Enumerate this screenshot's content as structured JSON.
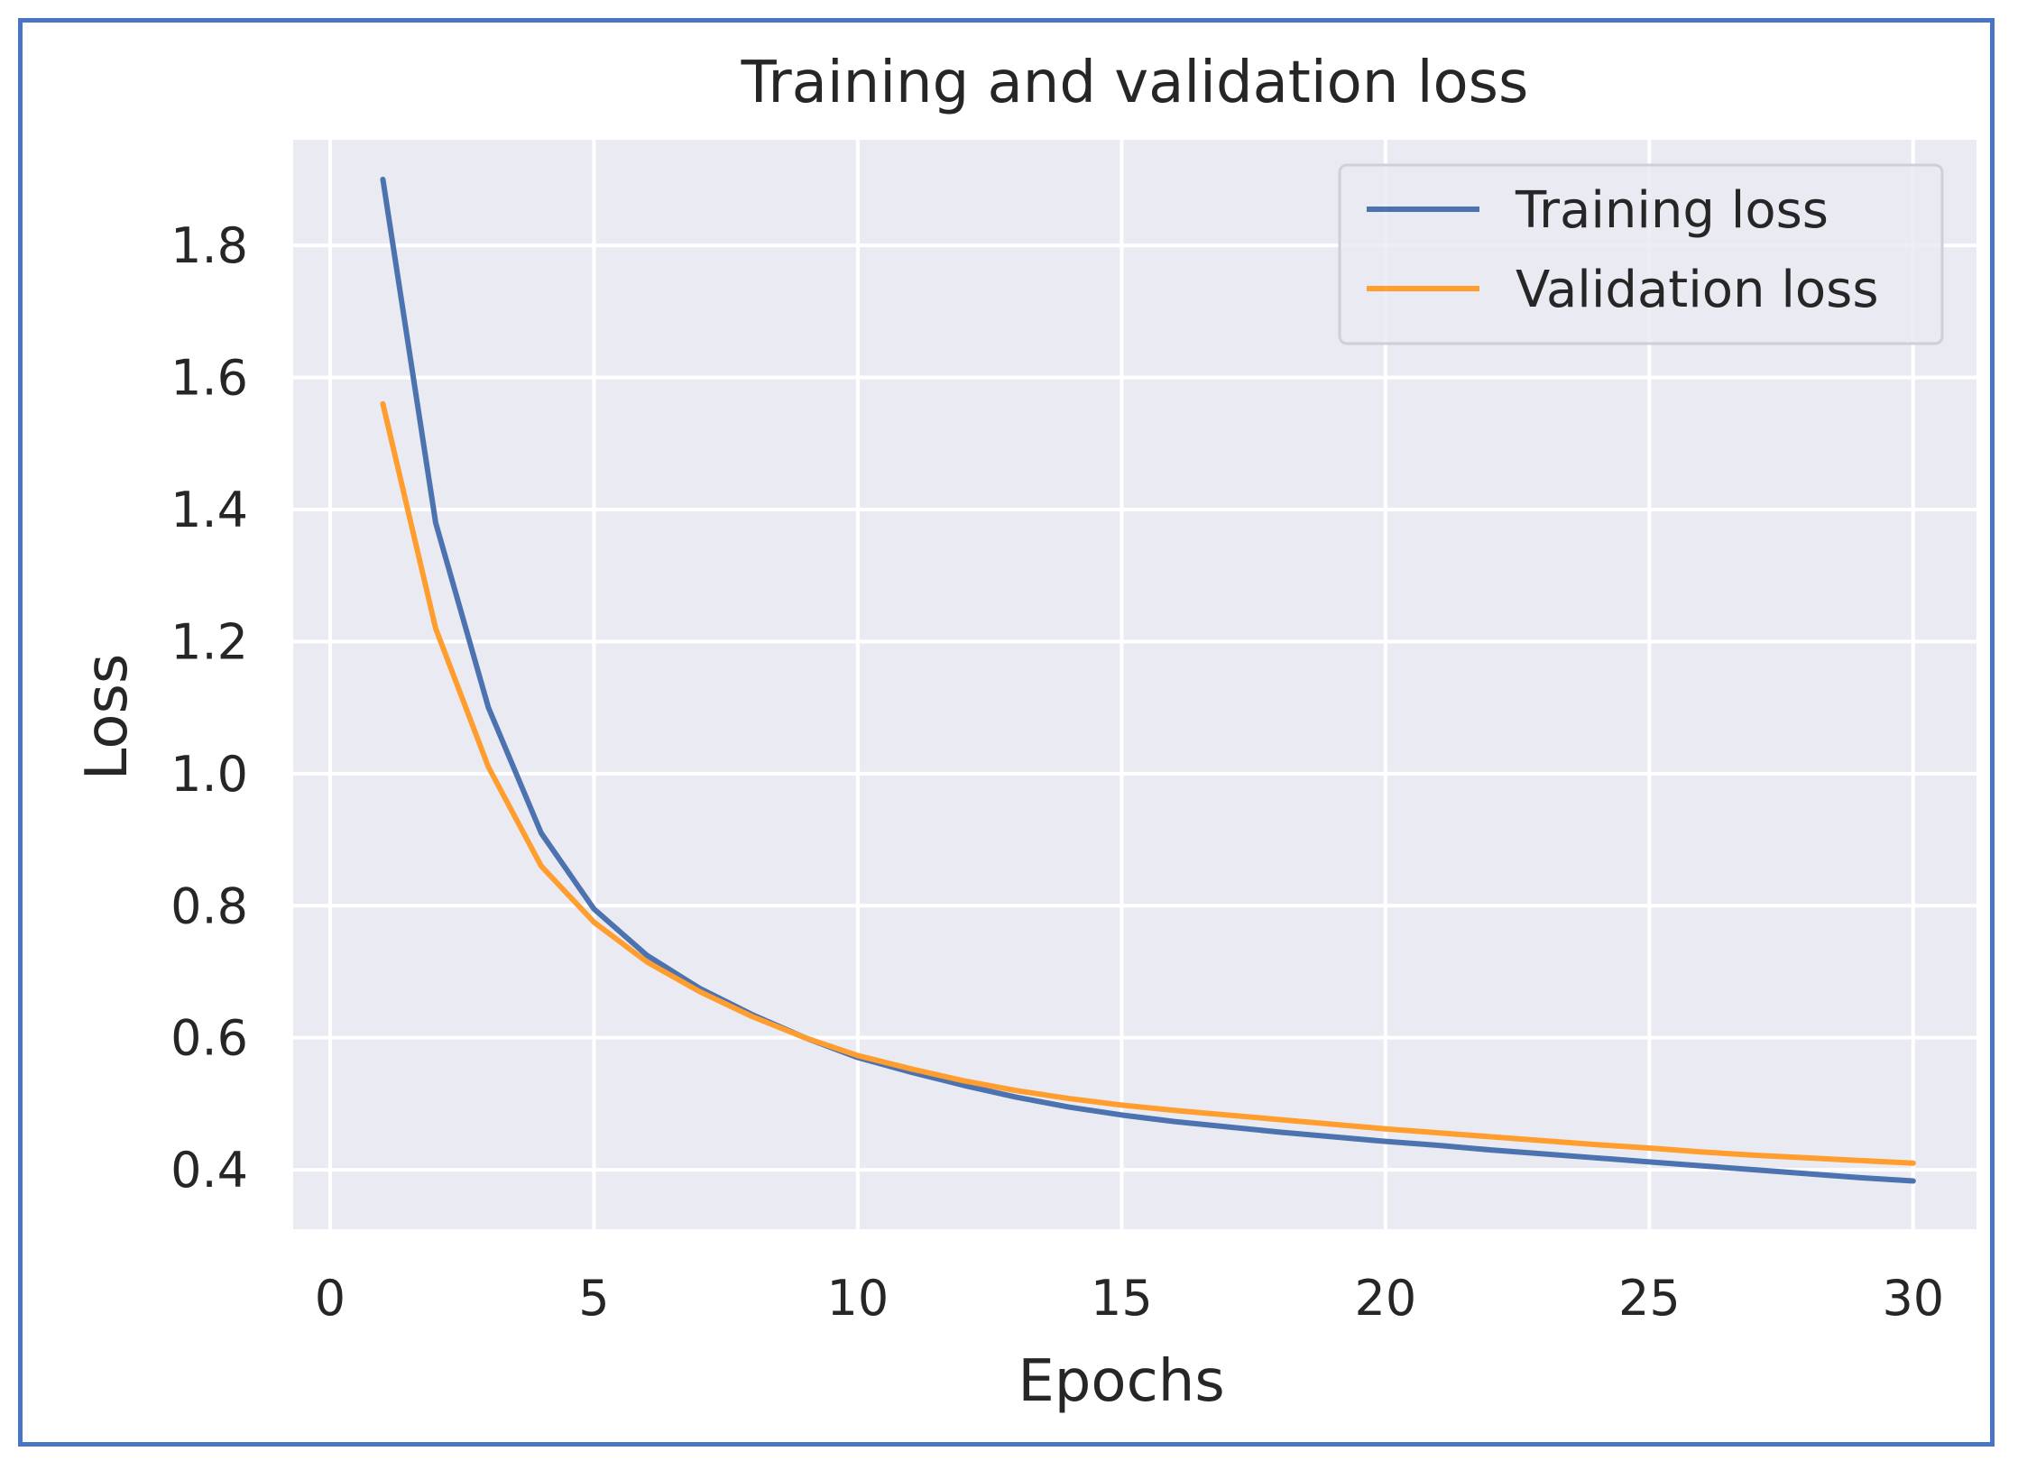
{
  "chart_data": {
    "type": "line",
    "title": "Training and validation loss",
    "xlabel": "Epochs",
    "ylabel": "Loss",
    "xlim": [
      -0.7,
      31.2
    ],
    "ylim": [
      0.31,
      1.96
    ],
    "xticks": [
      0,
      5,
      10,
      15,
      20,
      25,
      30
    ],
    "yticks": [
      0.4,
      0.6,
      0.8,
      1.0,
      1.2,
      1.4,
      1.6,
      1.8
    ],
    "xtick_labels": [
      "0",
      "5",
      "10",
      "15",
      "20",
      "25",
      "30"
    ],
    "ytick_labels": [
      "0.4",
      "0.6",
      "0.8",
      "1.0",
      "1.2",
      "1.4",
      "1.6",
      "1.8"
    ],
    "grid": true,
    "legend_position": "top-right",
    "x": [
      1,
      2,
      3,
      4,
      5,
      6,
      7,
      8,
      9,
      10,
      11,
      12,
      13,
      14,
      15,
      16,
      17,
      18,
      19,
      20,
      21,
      22,
      23,
      24,
      25,
      26,
      27,
      28,
      29,
      30
    ],
    "series": [
      {
        "name": "Training loss",
        "color": "#4c72b0",
        "values": [
          1.9,
          1.38,
          1.1,
          0.91,
          0.795,
          0.725,
          0.675,
          0.635,
          0.6,
          0.57,
          0.548,
          0.528,
          0.51,
          0.495,
          0.483,
          0.473,
          0.465,
          0.457,
          0.45,
          0.443,
          0.437,
          0.43,
          0.424,
          0.418,
          0.412,
          0.406,
          0.4,
          0.394,
          0.388,
          0.383
        ]
      },
      {
        "name": "Validation loss",
        "color": "#ff9e2e",
        "values": [
          1.56,
          1.22,
          1.01,
          0.86,
          0.775,
          0.715,
          0.67,
          0.632,
          0.6,
          0.573,
          0.553,
          0.535,
          0.52,
          0.508,
          0.498,
          0.49,
          0.483,
          0.476,
          0.469,
          0.462,
          0.456,
          0.45,
          0.444,
          0.438,
          0.433,
          0.427,
          0.422,
          0.418,
          0.414,
          0.41
        ]
      }
    ]
  }
}
